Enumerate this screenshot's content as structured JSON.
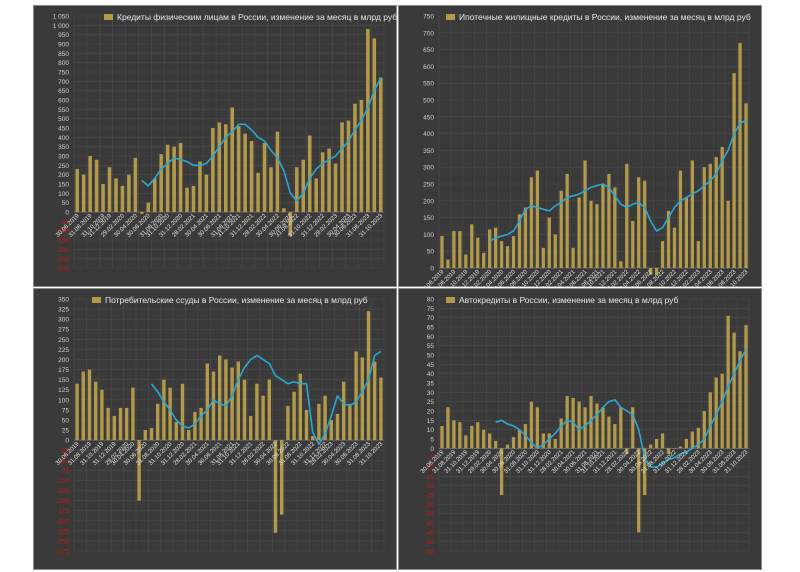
{
  "colors": {
    "panel_bg": "#3a3a3a",
    "grid": "#4c4c4c",
    "bar": "#b3994a",
    "line": "#2aa7d4",
    "tick_pos": "#d0d0d0",
    "tick_neg": "#d01818",
    "date": "#e0e0e0"
  },
  "dates": [
    "30.06.2019",
    "31.08.2019",
    "31.10.2019",
    "31.12.2019",
    "29.02.2020",
    "30.04.2020",
    "30.06.2020",
    "31.08.2020",
    "31.10.2020",
    "31.12.2020",
    "28.02.2021",
    "30.04.2021",
    "30.06.2021",
    "31.08.2021",
    "31.10.2021",
    "31.12.2021",
    "28.02.2022",
    "30.04.2022",
    "30.06.2022",
    "31.08.2022",
    "31.10.2022",
    "31.12.2022",
    "28.02.2023",
    "30.04.2023",
    "30.06.2023",
    "31.08.2023",
    "31.10.2023"
  ],
  "chart_data": [
    {
      "type": "bar",
      "title": "Кредиты физическим лицам  в России, изменение за месяц в млрд руб",
      "legend": "top-left",
      "grid": true,
      "ylim": [
        -300,
        1050
      ],
      "yticks": [
        1050,
        1000,
        950,
        900,
        850,
        800,
        750,
        700,
        650,
        600,
        550,
        500,
        450,
        400,
        350,
        300,
        250,
        200,
        150,
        100,
        50,
        0,
        -50,
        -100,
        -150,
        -200,
        -250,
        -300
      ],
      "bars": [
        230,
        200,
        300,
        280,
        150,
        240,
        180,
        140,
        200,
        290,
        -10,
        50,
        180,
        310,
        360,
        350,
        370,
        130,
        140,
        270,
        200,
        450,
        480,
        470,
        560,
        460,
        420,
        380,
        210,
        370,
        240,
        430,
        20,
        -130,
        240,
        280,
        410,
        180,
        320,
        340,
        260,
        480,
        490,
        580,
        600,
        980,
        930,
        720
      ],
      "line": [
        null,
        null,
        null,
        null,
        null,
        null,
        null,
        null,
        null,
        null,
        170,
        140,
        180,
        230,
        260,
        290,
        280,
        270,
        250,
        250,
        260,
        300,
        350,
        400,
        430,
        470,
        470,
        440,
        400,
        380,
        330,
        290,
        220,
        100,
        60,
        100,
        180,
        230,
        260,
        280,
        300,
        340,
        380,
        440,
        490,
        560,
        650,
        720
      ]
    },
    {
      "type": "bar",
      "title": "Ипотечные жилищные кредиты в России, изменение за месяц в млрд руб",
      "legend": "top-left",
      "grid": true,
      "ylim": [
        0,
        750
      ],
      "yticks": [
        750,
        700,
        650,
        600,
        550,
        500,
        450,
        400,
        350,
        300,
        250,
        200,
        150,
        100,
        50,
        0
      ],
      "bars": [
        95,
        25,
        110,
        110,
        40,
        130,
        90,
        45,
        115,
        120,
        80,
        65,
        95,
        160,
        180,
        270,
        290,
        60,
        150,
        100,
        230,
        280,
        60,
        210,
        320,
        200,
        190,
        250,
        280,
        240,
        20,
        310,
        140,
        270,
        260,
        -20,
        -20,
        80,
        170,
        120,
        290,
        210,
        320,
        80,
        300,
        310,
        330,
        360,
        200,
        580,
        670,
        490
      ],
      "line": [
        null,
        null,
        null,
        null,
        null,
        null,
        null,
        null,
        80,
        90,
        95,
        100,
        110,
        140,
        175,
        185,
        180,
        175,
        170,
        185,
        195,
        210,
        215,
        220,
        230,
        240,
        245,
        250,
        240,
        215,
        190,
        180,
        190,
        195,
        180,
        140,
        110,
        120,
        150,
        180,
        200,
        210,
        220,
        230,
        245,
        260,
        280,
        320,
        350,
        400,
        430,
        440
      ]
    },
    {
      "type": "bar",
      "title": "Потребительские ссуды в России, изменение за месяц в млрд руб",
      "legend": "top-left",
      "grid": true,
      "ylim": [
        -275,
        350
      ],
      "yticks": [
        350,
        325,
        300,
        275,
        250,
        225,
        200,
        175,
        150,
        125,
        100,
        75,
        50,
        25,
        0,
        -25,
        -50,
        -75,
        -100,
        -125,
        -150,
        -175,
        -200,
        -225,
        -250,
        -275
      ],
      "bars": [
        140,
        170,
        175,
        145,
        125,
        80,
        60,
        80,
        80,
        130,
        -150,
        25,
        30,
        90,
        150,
        130,
        45,
        140,
        25,
        70,
        80,
        190,
        170,
        210,
        200,
        180,
        195,
        150,
        60,
        140,
        110,
        150,
        -230,
        -185,
        85,
        120,
        165,
        75,
        10,
        90,
        110,
        50,
        65,
        145,
        90,
        220,
        205,
        320,
        195,
        155
      ],
      "line": [
        null,
        null,
        null,
        null,
        null,
        null,
        null,
        null,
        null,
        null,
        null,
        null,
        140,
        120,
        95,
        75,
        50,
        35,
        30,
        40,
        60,
        75,
        100,
        90,
        85,
        110,
        150,
        180,
        200,
        210,
        200,
        190,
        160,
        150,
        140,
        145,
        140,
        140,
        20,
        -10,
        15,
        60,
        110,
        90,
        85,
        95,
        120,
        150,
        210,
        220
      ]
    },
    {
      "type": "bar",
      "title": "Автокредиты в России, изменение за месяц в млрд руб",
      "legend": "top-left",
      "grid": true,
      "ylim": [
        -55,
        80
      ],
      "yticks": [
        80,
        75,
        70,
        65,
        60,
        55,
        50,
        45,
        40,
        35,
        30,
        25,
        20,
        15,
        10,
        5,
        0,
        -5,
        -10,
        -15,
        -20,
        -25,
        -30,
        -35,
        -40,
        -45,
        -50,
        -55
      ],
      "bars": [
        12,
        22,
        15,
        14,
        7,
        12,
        14,
        10,
        8,
        4,
        -25,
        2,
        6,
        10,
        13,
        25,
        22,
        8,
        8,
        5,
        16,
        28,
        27,
        25,
        22,
        28,
        24,
        22,
        17,
        13,
        22,
        -3,
        22,
        -45,
        -25,
        2,
        5,
        8,
        -3,
        0,
        1,
        5,
        9,
        11,
        20,
        30,
        38,
        40,
        71,
        62,
        52,
        66
      ],
      "line": [
        null,
        null,
        null,
        null,
        null,
        null,
        null,
        null,
        null,
        14,
        15,
        13,
        12,
        10,
        7,
        3,
        0,
        2,
        5,
        8,
        12,
        15,
        14,
        10,
        12,
        15,
        18,
        22,
        25,
        26,
        22,
        20,
        18,
        10,
        -5,
        -10,
        -10,
        -8,
        -6,
        -5,
        -3,
        -2,
        0,
        2,
        5,
        12,
        18,
        25,
        33,
        40,
        47,
        53
      ]
    }
  ]
}
